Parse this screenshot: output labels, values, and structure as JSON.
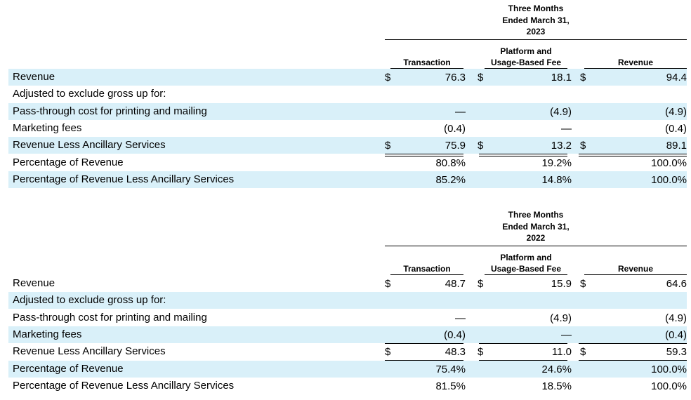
{
  "tables": [
    {
      "period_lines": [
        "Three Months",
        "Ended March 31,",
        "2023"
      ],
      "columns": {
        "transaction": [
          "Transaction"
        ],
        "platform": [
          "Platform and",
          "Usage-Based Fee"
        ],
        "revenue": [
          "Revenue"
        ]
      },
      "rows": [
        {
          "label": "Revenue",
          "dollar": true,
          "transaction": "76.3",
          "platform": "18.1",
          "revenue": "94.4"
        },
        {
          "label": "Adjusted to exclude gross up for:",
          "dollar": false,
          "transaction": "",
          "platform": "",
          "revenue": ""
        },
        {
          "label": "Pass-through cost for printing and mailing",
          "dollar": false,
          "transaction": "—",
          "platform": "(4.9)",
          "revenue": "(4.9)"
        },
        {
          "label": "Marketing fees",
          "dollar": false,
          "transaction": "(0.4)",
          "platform": "—",
          "revenue": "(0.4)"
        },
        {
          "label": "Revenue Less Ancillary Services",
          "dollar": true,
          "transaction": "75.9",
          "platform": "13.2",
          "revenue": "89.1"
        },
        {
          "label": "Percentage of Revenue",
          "dollar": false,
          "transaction": "80.8%",
          "platform": "19.2%",
          "revenue": "100.0%"
        },
        {
          "label": "Percentage of Revenue Less Ancillary Services",
          "dollar": false,
          "transaction": "85.2%",
          "platform": "14.8%",
          "revenue": "100.0%"
        }
      ]
    },
    {
      "period_lines": [
        "Three Months",
        "Ended March 31,",
        "2022"
      ],
      "columns": {
        "transaction": [
          "Transaction"
        ],
        "platform": [
          "Platform and",
          "Usage-Based Fee"
        ],
        "revenue": [
          "Revenue"
        ]
      },
      "rows": [
        {
          "label": "Revenue",
          "dollar": true,
          "transaction": "48.7",
          "platform": "15.9",
          "revenue": "64.6"
        },
        {
          "label": "Adjusted to exclude gross up for:",
          "dollar": false,
          "transaction": "",
          "platform": "",
          "revenue": ""
        },
        {
          "label": "Pass-through cost for printing and mailing",
          "dollar": false,
          "transaction": "—",
          "platform": "(4.9)",
          "revenue": "(4.9)"
        },
        {
          "label": "Marketing fees",
          "dollar": false,
          "transaction": "(0.4)",
          "platform": "—",
          "revenue": "(0.4)"
        },
        {
          "label": "Revenue Less Ancillary Services",
          "dollar": true,
          "transaction": "48.3",
          "platform": "11.0",
          "revenue": "59.3"
        },
        {
          "label": "Percentage of Revenue",
          "dollar": false,
          "transaction": "75.4%",
          "platform": "24.6%",
          "revenue": "100.0%"
        },
        {
          "label": "Percentage of Revenue Less Ancillary Services",
          "dollar": false,
          "transaction": "81.5%",
          "platform": "18.5%",
          "revenue": "100.0%"
        }
      ]
    }
  ],
  "currency_symbol": "$",
  "colors": {
    "row_shade": "#d9f0f9",
    "text": "#000000"
  }
}
